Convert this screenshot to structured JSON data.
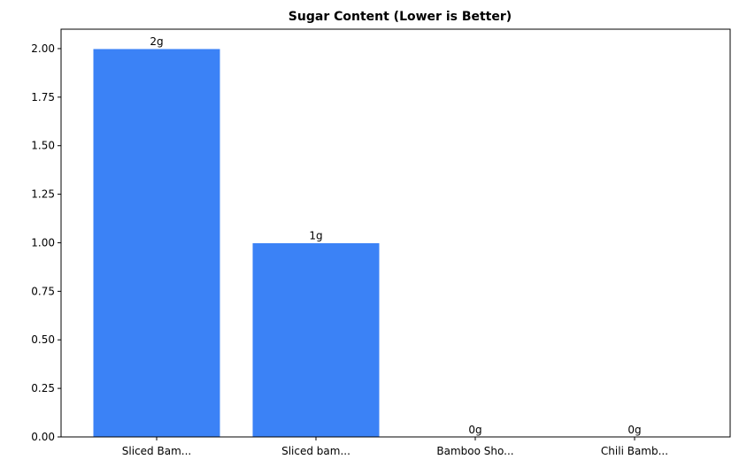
{
  "chart_data": {
    "type": "bar",
    "title": "Sugar Content (Lower is Better)",
    "xlabel": "",
    "ylabel": "",
    "categories": [
      "Sliced Bam...",
      "Sliced bam...",
      "Bamboo Sho...",
      "Chili Bamb..."
    ],
    "values": [
      2,
      1,
      0,
      0
    ],
    "data_labels": [
      "2g",
      "1g",
      "0g",
      "0g"
    ],
    "ylim": [
      0,
      2.1
    ],
    "yticks": [
      0,
      0.25,
      0.5,
      0.75,
      1.0,
      1.25,
      1.5,
      1.75,
      2.0
    ],
    "ytick_labels": [
      "0.00",
      "0.25",
      "0.50",
      "0.75",
      "1.00",
      "1.25",
      "1.50",
      "1.75",
      "2.00"
    ],
    "grid": false,
    "bar_color": "#3b82f6",
    "bar_edge_color": "#ffffff"
  }
}
